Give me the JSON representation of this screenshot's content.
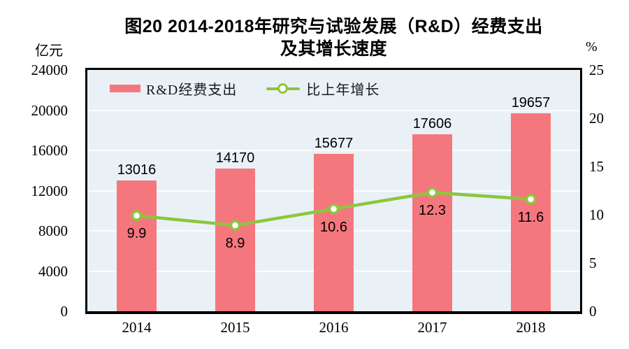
{
  "page": {
    "background": "#FFFFFF"
  },
  "title": {
    "line1": "图20  2014-2018年研究与试验发展（R&D）经费支出",
    "line2": "及其增长速度"
  },
  "chart_data": {
    "type": "combo",
    "categories": [
      "2014",
      "2015",
      "2016",
      "2017",
      "2018"
    ],
    "series": [
      {
        "name": "R&D经费支出",
        "type": "bar",
        "axis": "left",
        "color": "#F5777E",
        "values": [
          13016,
          14170,
          15677,
          17606,
          19657
        ],
        "labels": [
          "13016",
          "14170",
          "15677",
          "17606",
          "19657"
        ]
      },
      {
        "name": "比上年增长",
        "type": "line",
        "axis": "right",
        "color": "#8CC63E",
        "marker_fill": "#FFFFFF",
        "values": [
          9.9,
          8.9,
          10.6,
          12.3,
          11.6
        ],
        "labels": [
          "9.9",
          "8.9",
          "10.6",
          "12.3",
          "11.6"
        ]
      }
    ],
    "left_axis": {
      "unit": "亿元",
      "min": 0,
      "max": 24000,
      "tick_step": 4000,
      "ticks": [
        "0",
        "4000",
        "8000",
        "12000",
        "16000",
        "20000",
        "24000"
      ]
    },
    "right_axis": {
      "unit": "%",
      "min": 0,
      "max": 25,
      "tick_step": 5,
      "ticks": [
        "0",
        "5",
        "10",
        "15",
        "20",
        "25"
      ]
    },
    "legend_position": "top-left-inside",
    "grid": {
      "visible": true,
      "color": "#FBFDFE"
    },
    "plot_background": "#E9F1F6",
    "border_color": "#000000",
    "text_color": "#000000"
  }
}
